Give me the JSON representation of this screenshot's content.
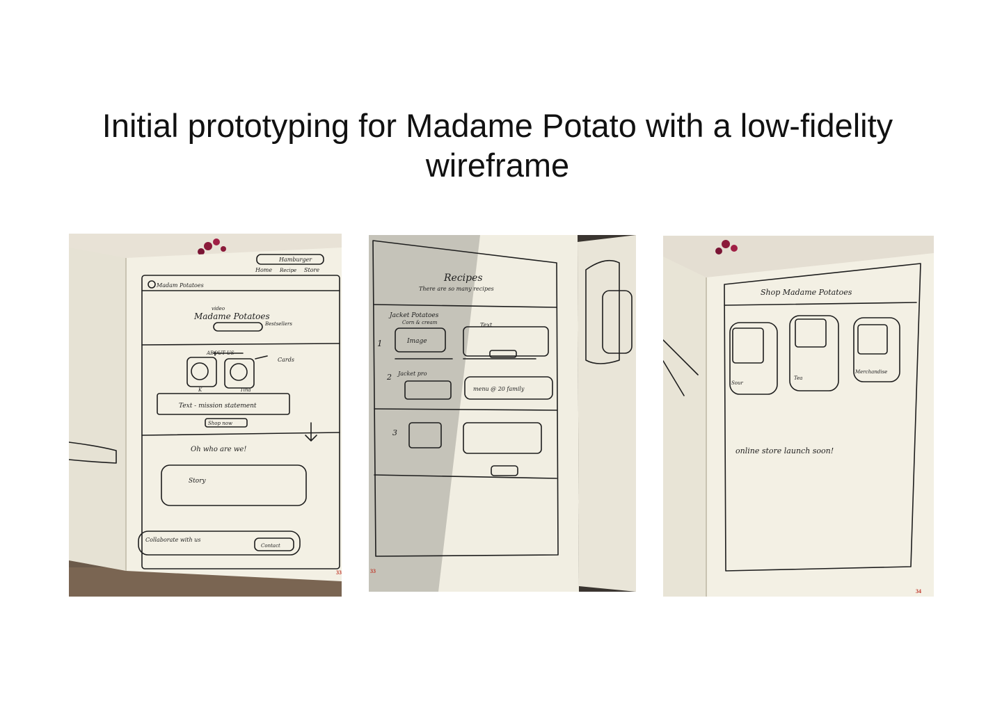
{
  "title": "Initial prototyping for Madame Potato with a low-fidelity wireframe",
  "photos": [
    {
      "sketch": {
        "brand": "Madam Potatoes",
        "nav": [
          "Home",
          "Recipe",
          "Store"
        ],
        "hamburger_note": "Hamburger",
        "video_note": "video",
        "hero_title": "Madame Potatoes",
        "hero_button": "Bestsellers",
        "about_heading": "ABOUT US",
        "cards_note": "Cards",
        "card_labels": [
          "K",
          "Tina"
        ],
        "statement": "Text - mission statement",
        "shop_button": "Shop now",
        "who_heading": "Oh who are we!",
        "story_box": "Story",
        "collab_text": "Collaborate with us",
        "contact_button": "Contact"
      },
      "page_number": "33"
    },
    {
      "sketch": {
        "heading": "Recipes",
        "subheading": "There are so many recipes",
        "item1_title": "Jacket Potatoes",
        "item1_sub": "Corn & cream",
        "item1_image": "Image",
        "item1_text": "Text",
        "item2_title": "Jacket pro",
        "item2_menu": "menu @ 20 family",
        "step_numbers": [
          "1",
          "2",
          "3"
        ]
      },
      "page_number": "33"
    },
    {
      "sketch": {
        "heading": "Shop Madame Potatoes",
        "products": [
          "Sour",
          "Tea",
          "Merchandise"
        ],
        "note": "online store launch soon!"
      },
      "page_number": "34"
    }
  ],
  "colors": {
    "paper": "#f3f0e4",
    "ink": "#1d1d1d",
    "page_number": "#c0392b",
    "background": "#ffffff"
  }
}
